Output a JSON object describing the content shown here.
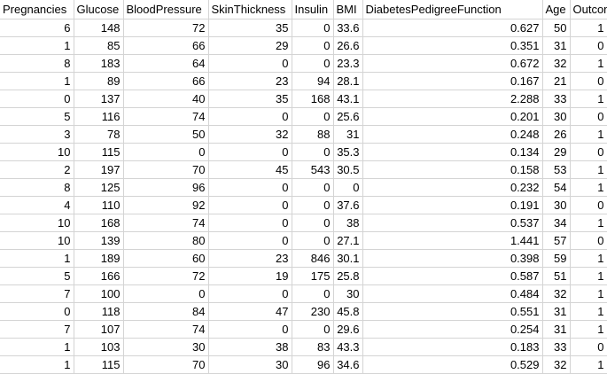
{
  "sheet": {
    "headers": [
      "Pregnancies",
      "Glucose",
      "BloodPressure",
      "SkinThickness",
      "Insulin",
      "BMI",
      "DiabetesPedigreeFunction",
      "Age",
      "Outcome"
    ],
    "rows": [
      [
        "6",
        "148",
        "72",
        "35",
        "0",
        "33.6",
        "0.627",
        "50",
        "1"
      ],
      [
        "1",
        "85",
        "66",
        "29",
        "0",
        "26.6",
        "0.351",
        "31",
        "0"
      ],
      [
        "8",
        "183",
        "64",
        "0",
        "0",
        "23.3",
        "0.672",
        "32",
        "1"
      ],
      [
        "1",
        "89",
        "66",
        "23",
        "94",
        "28.1",
        "0.167",
        "21",
        "0"
      ],
      [
        "0",
        "137",
        "40",
        "35",
        "168",
        "43.1",
        "2.288",
        "33",
        "1"
      ],
      [
        "5",
        "116",
        "74",
        "0",
        "0",
        "25.6",
        "0.201",
        "30",
        "0"
      ],
      [
        "3",
        "78",
        "50",
        "32",
        "88",
        "31",
        "0.248",
        "26",
        "1"
      ],
      [
        "10",
        "115",
        "0",
        "0",
        "0",
        "35.3",
        "0.134",
        "29",
        "0"
      ],
      [
        "2",
        "197",
        "70",
        "45",
        "543",
        "30.5",
        "0.158",
        "53",
        "1"
      ],
      [
        "8",
        "125",
        "96",
        "0",
        "0",
        "0",
        "0.232",
        "54",
        "1"
      ],
      [
        "4",
        "110",
        "92",
        "0",
        "0",
        "37.6",
        "0.191",
        "30",
        "0"
      ],
      [
        "10",
        "168",
        "74",
        "0",
        "0",
        "38",
        "0.537",
        "34",
        "1"
      ],
      [
        "10",
        "139",
        "80",
        "0",
        "0",
        "27.1",
        "1.441",
        "57",
        "0"
      ],
      [
        "1",
        "189",
        "60",
        "23",
        "846",
        "30.1",
        "0.398",
        "59",
        "1"
      ],
      [
        "5",
        "166",
        "72",
        "19",
        "175",
        "25.8",
        "0.587",
        "51",
        "1"
      ],
      [
        "7",
        "100",
        "0",
        "0",
        "0",
        "30",
        "0.484",
        "32",
        "1"
      ],
      [
        "0",
        "118",
        "84",
        "47",
        "230",
        "45.8",
        "0.551",
        "31",
        "1"
      ],
      [
        "7",
        "107",
        "74",
        "0",
        "0",
        "29.6",
        "0.254",
        "31",
        "1"
      ],
      [
        "1",
        "103",
        "30",
        "38",
        "83",
        "43.3",
        "0.183",
        "33",
        "0"
      ],
      [
        "1",
        "115",
        "70",
        "30",
        "96",
        "34.6",
        "0.529",
        "32",
        "1"
      ]
    ]
  }
}
